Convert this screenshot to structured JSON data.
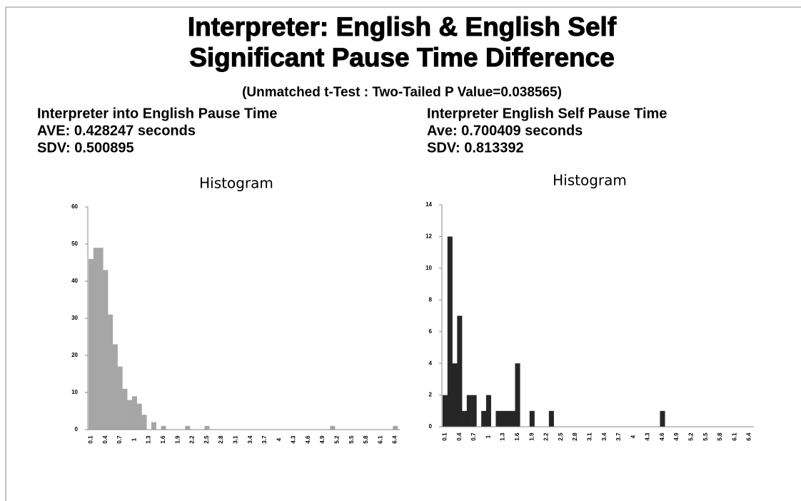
{
  "title_lines": [
    "Interpreter: English & English Self",
    "Significant Pause Time Difference"
  ],
  "subtitle": "(Unmatched t-Test : Two-Tailed P Value=0.038565)",
  "stats": [
    {
      "heading": "Interpreter into English Pause Time",
      "ave": "AVE:  0.428247  seconds",
      "sdv": "SDV:  0.500895"
    },
    {
      "heading": "Interpreter English Self Pause Time",
      "ave": "Ave:  0.700409 seconds",
      "sdv": "SDV:  0.813392"
    }
  ],
  "chart_data": [
    {
      "type": "bar",
      "title": "Histogram",
      "color": "#a6a6a6",
      "categories": [
        "0.1",
        null,
        null,
        "0.4",
        null,
        null,
        "0.7",
        null,
        null,
        "1",
        null,
        null,
        "1.3",
        null,
        null,
        "1.6",
        null,
        null,
        "1.9",
        null,
        null,
        "2.2",
        null,
        null,
        "2.5",
        null,
        null,
        "2.8",
        null,
        null,
        "3.1",
        null,
        null,
        "3.4",
        null,
        null,
        "3.7",
        null,
        null,
        "4",
        null,
        null,
        "4.3",
        null,
        null,
        "4.6",
        null,
        null,
        "4.9",
        null,
        null,
        "5.2",
        null,
        null,
        "5.5",
        null,
        null,
        "5.8",
        null,
        null,
        "6.1",
        null,
        null,
        "6.4"
      ],
      "values": [
        46,
        49,
        49,
        43,
        31,
        23,
        17,
        11,
        8,
        9,
        7,
        4,
        0,
        2,
        0,
        1,
        0,
        0,
        0,
        0,
        1,
        0,
        0,
        0,
        1,
        0,
        0,
        0,
        0,
        0,
        0,
        0,
        0,
        0,
        0,
        0,
        0,
        0,
        0,
        0,
        0,
        0,
        0,
        0,
        0,
        0,
        0,
        0,
        0,
        0,
        1,
        0,
        0,
        0,
        0,
        0,
        0,
        0,
        0,
        0,
        0,
        0,
        0,
        1
      ],
      "ylim": [
        0,
        60
      ],
      "yticks": [
        0,
        10,
        20,
        30,
        40,
        50,
        60
      ]
    },
    {
      "type": "bar",
      "title": "Histogram",
      "color": "#262626",
      "categories": [
        "0.1",
        null,
        null,
        "0.4",
        null,
        null,
        "0.7",
        null,
        null,
        "1",
        null,
        null,
        "1.3",
        null,
        null,
        "1.6",
        null,
        null,
        "1.9",
        null,
        null,
        "2.2",
        null,
        null,
        "2.5",
        null,
        null,
        "2.8",
        null,
        null,
        "3.1",
        null,
        null,
        "3.4",
        null,
        null,
        "3.7",
        null,
        null,
        "4",
        null,
        null,
        "4.3",
        null,
        null,
        "4.6",
        null,
        null,
        "4.9",
        null,
        null,
        "5.2",
        null,
        null,
        "5.5",
        null,
        null,
        "5.8",
        null,
        null,
        "6.1",
        null,
        null,
        "6.4"
      ],
      "values": [
        2,
        12,
        4,
        7,
        1,
        2,
        2,
        0,
        1,
        2,
        0,
        1,
        1,
        1,
        1,
        4,
        0,
        0,
        1,
        0,
        0,
        0,
        1,
        0,
        0,
        0,
        0,
        0,
        0,
        0,
        0,
        0,
        0,
        0,
        0,
        0,
        0,
        0,
        0,
        0,
        0,
        0,
        0,
        0,
        0,
        1,
        0,
        0,
        0,
        0,
        0,
        0,
        0,
        0,
        0,
        0,
        0,
        0,
        0,
        0,
        0,
        0,
        0,
        0
      ],
      "ylim": [
        0,
        14
      ],
      "yticks": [
        0,
        2,
        4,
        6,
        8,
        10,
        12,
        14
      ]
    }
  ]
}
